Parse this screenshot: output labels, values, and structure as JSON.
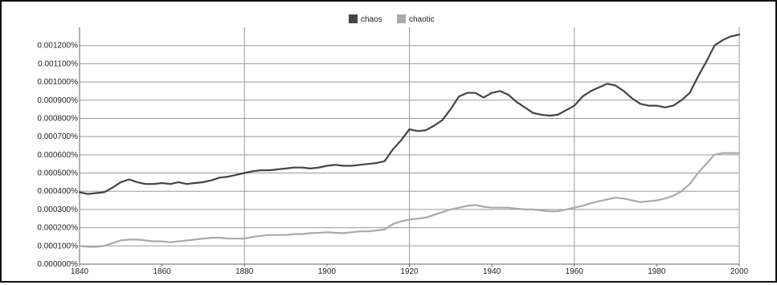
{
  "chart_data": {
    "type": "line",
    "title": "",
    "xlabel": "",
    "ylabel": "",
    "xlim": [
      1840,
      2000
    ],
    "ylim": [
      0,
      0.0013
    ],
    "grid": true,
    "legend_position": "top-center",
    "x_ticks": [
      {
        "value": 1840,
        "label": "1840"
      },
      {
        "value": 1860,
        "label": "1860"
      },
      {
        "value": 1880,
        "label": "1880"
      },
      {
        "value": 1900,
        "label": "1900"
      },
      {
        "value": 1920,
        "label": "1920"
      },
      {
        "value": 1940,
        "label": "1940"
      },
      {
        "value": 1960,
        "label": "1960"
      },
      {
        "value": 1980,
        "label": "1980"
      },
      {
        "value": 2000,
        "label": "2000"
      }
    ],
    "y_ticks": [
      {
        "value": 0,
        "label": "0.000000%"
      },
      {
        "value": 0.0001,
        "label": "0.000100%"
      },
      {
        "value": 0.0002,
        "label": "0.000200%"
      },
      {
        "value": 0.0003,
        "label": "0.000300%"
      },
      {
        "value": 0.0004,
        "label": "0.000400%"
      },
      {
        "value": 0.0005,
        "label": "0.000500%"
      },
      {
        "value": 0.0006,
        "label": "0.000600%"
      },
      {
        "value": 0.0007,
        "label": "0.000700%"
      },
      {
        "value": 0.0008,
        "label": "0.000800%"
      },
      {
        "value": 0.0009,
        "label": "0.000900%"
      },
      {
        "value": 0.001,
        "label": "0.001000%"
      },
      {
        "value": 0.0011,
        "label": "0.001100%"
      },
      {
        "value": 0.0012,
        "label": "0.001200%"
      }
    ],
    "grid_x": [
      1840,
      1880,
      1920,
      1960,
      2000
    ],
    "x": [
      1840,
      1842,
      1844,
      1846,
      1848,
      1850,
      1852,
      1854,
      1856,
      1858,
      1860,
      1862,
      1864,
      1866,
      1868,
      1870,
      1872,
      1874,
      1876,
      1878,
      1880,
      1882,
      1884,
      1886,
      1888,
      1890,
      1892,
      1894,
      1896,
      1898,
      1900,
      1902,
      1904,
      1906,
      1908,
      1910,
      1912,
      1914,
      1916,
      1918,
      1920,
      1922,
      1924,
      1926,
      1928,
      1930,
      1932,
      1934,
      1936,
      1938,
      1940,
      1942,
      1944,
      1946,
      1948,
      1950,
      1952,
      1954,
      1956,
      1958,
      1960,
      1962,
      1964,
      1966,
      1968,
      1970,
      1972,
      1974,
      1976,
      1978,
      1980,
      1982,
      1984,
      1986,
      1988,
      1990,
      1992,
      1994,
      1996,
      1998,
      2000
    ],
    "series": [
      {
        "name": "chaos",
        "color": "#444444",
        "values": [
          0.000395,
          0.000385,
          0.00039,
          0.000395,
          0.00042,
          0.00045,
          0.000465,
          0.00045,
          0.00044,
          0.00044,
          0.000445,
          0.00044,
          0.00045,
          0.00044,
          0.000445,
          0.00045,
          0.00046,
          0.000475,
          0.00048,
          0.00049,
          0.0005,
          0.00051,
          0.000515,
          0.000515,
          0.00052,
          0.000525,
          0.00053,
          0.00053,
          0.000525,
          0.00053,
          0.00054,
          0.000545,
          0.00054,
          0.00054,
          0.000545,
          0.00055,
          0.000555,
          0.000565,
          0.00063,
          0.00068,
          0.00074,
          0.00073,
          0.000735,
          0.00076,
          0.00079,
          0.00085,
          0.00092,
          0.00094,
          0.00094,
          0.000915,
          0.00094,
          0.00095,
          0.00093,
          0.00089,
          0.00086,
          0.00083,
          0.00082,
          0.000815,
          0.00082,
          0.000845,
          0.00087,
          0.00092,
          0.00095,
          0.00097,
          0.00099,
          0.00098,
          0.00095,
          0.00091,
          0.00088,
          0.00087,
          0.00087,
          0.00086,
          0.00087,
          0.0009,
          0.00094,
          0.00103,
          0.00111,
          0.0012,
          0.00123,
          0.00125,
          0.00126
        ]
      },
      {
        "name": "chaotic",
        "color": "#aaaaaa",
        "values": [
          0.0001,
          9.5e-05,
          9.5e-05,
          0.0001,
          0.000115,
          0.00013,
          0.000135,
          0.000135,
          0.00013,
          0.000125,
          0.000125,
          0.00012,
          0.000125,
          0.00013,
          0.000135,
          0.00014,
          0.000145,
          0.000145,
          0.00014,
          0.00014,
          0.00014,
          0.00015,
          0.000155,
          0.00016,
          0.00016,
          0.00016,
          0.000165,
          0.000165,
          0.00017,
          0.000172,
          0.000175,
          0.000172,
          0.00017,
          0.000175,
          0.00018,
          0.00018,
          0.000185,
          0.00019,
          0.00022,
          0.000235,
          0.000245,
          0.00025,
          0.000255,
          0.00027,
          0.000285,
          0.0003,
          0.00031,
          0.00032,
          0.000325,
          0.000315,
          0.00031,
          0.00031,
          0.00031,
          0.000305,
          0.0003,
          0.0003,
          0.000295,
          0.00029,
          0.00029,
          0.0003,
          0.00031,
          0.00032,
          0.000335,
          0.000345,
          0.000355,
          0.000365,
          0.00036,
          0.00035,
          0.00034,
          0.000345,
          0.00035,
          0.00036,
          0.000375,
          0.0004,
          0.00044,
          0.0005,
          0.00055,
          0.0006,
          0.00061,
          0.00061,
          0.00061
        ]
      }
    ]
  }
}
